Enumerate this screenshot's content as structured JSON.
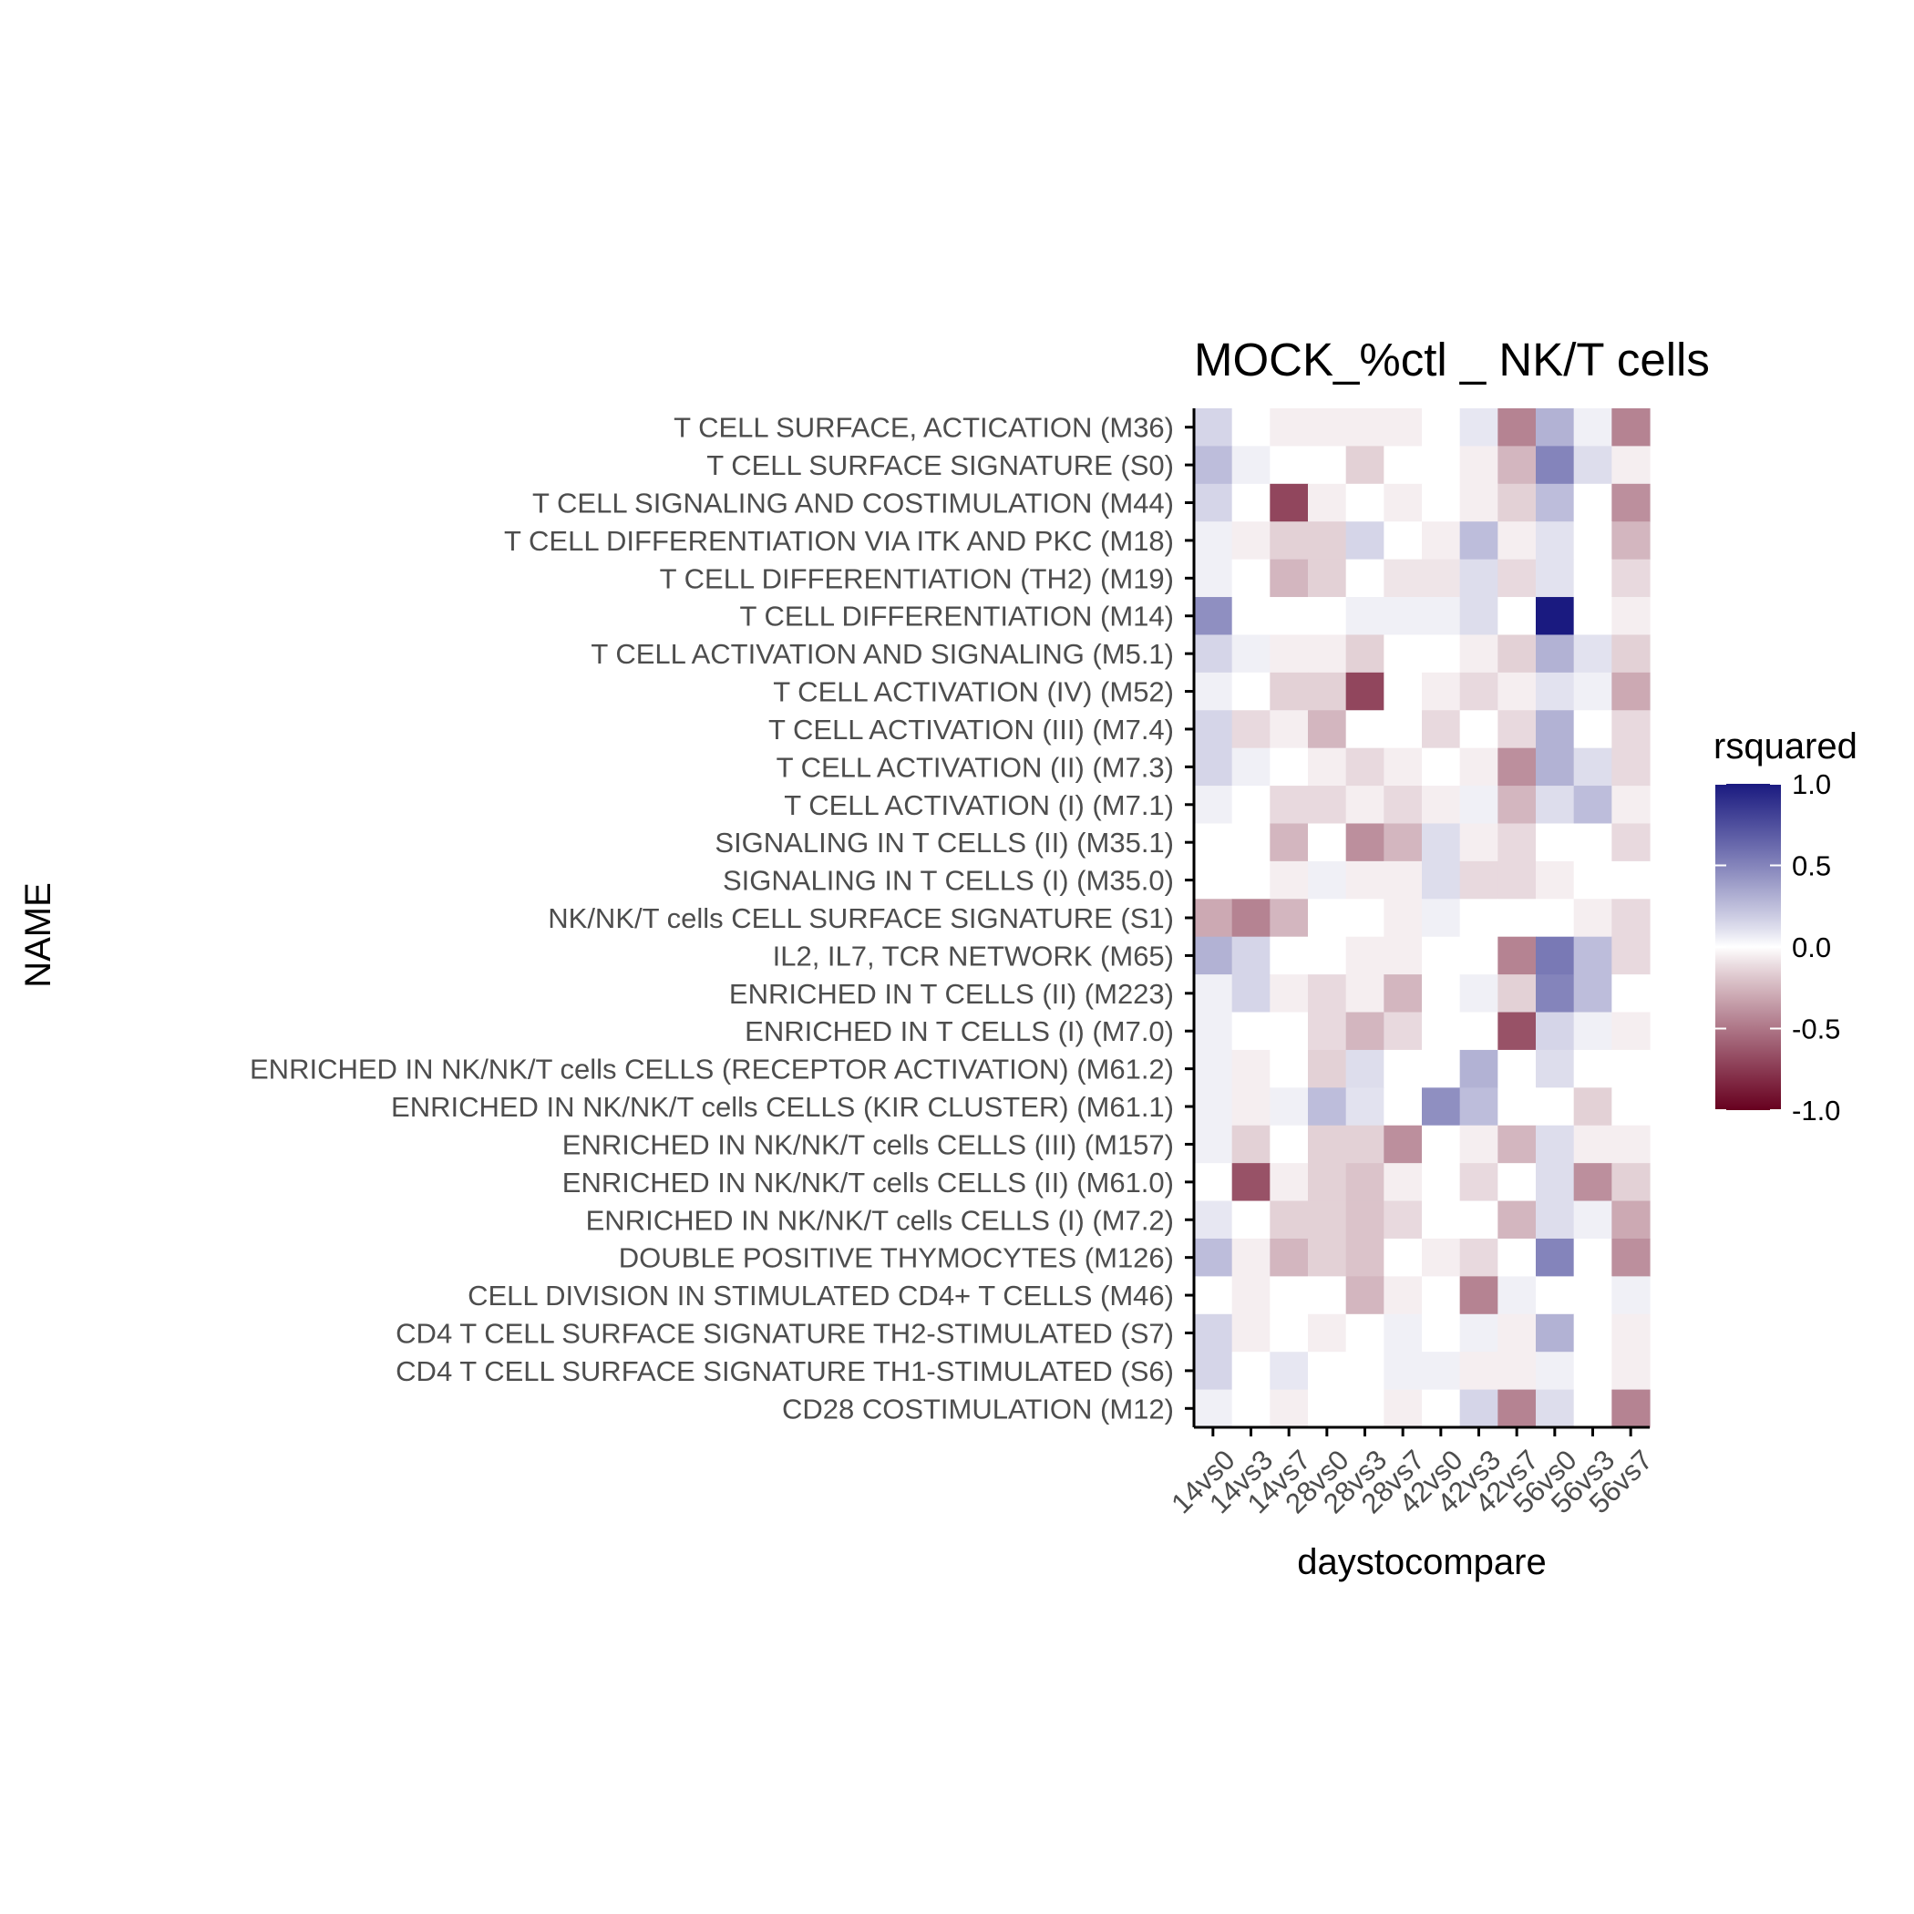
{
  "chart_data": {
    "type": "heatmap",
    "title": "MOCK_%ctl _ NK/T cells",
    "xlabel": "daystocompare",
    "ylabel": "NAME",
    "x_categories": [
      "14vs0",
      "14vs3",
      "14vs7",
      "28vs0",
      "28vs3",
      "28vs7",
      "42vs0",
      "42vs3",
      "42vs7",
      "56vs0",
      "56vs3",
      "56vs7"
    ],
    "y_categories": [
      "T CELL SURFACE, ACTICATION (M36)",
      "T CELL SURFACE SIGNATURE (S0)",
      "T CELL SIGNALING AND COSTIMULATION (M44)",
      "T CELL DIFFERENTIATION VIA ITK AND PKC (M18)",
      "T CELL DIFFERENTIATION (TH2) (M19)",
      "T CELL DIFFERENTIATION (M14)",
      "T CELL ACTIVATION AND SIGNALING (M5.1)",
      "T CELL ACTIVATION (IV) (M52)",
      "T CELL ACTIVATION (III) (M7.4)",
      "T CELL ACTIVATION (II) (M7.3)",
      "T CELL ACTIVATION (I) (M7.1)",
      "SIGNALING IN T CELLS (II) (M35.1)",
      "SIGNALING IN T CELLS (I) (M35.0)",
      "NK/NK/T cells CELL SURFACE SIGNATURE (S1)",
      "IL2, IL7, TCR NETWORK (M65)",
      "ENRICHED IN T CELLS (II) (M223)",
      "ENRICHED IN T CELLS (I) (M7.0)",
      "ENRICHED IN NK/NK/T cells CELLS (RECEPTOR ACTIVATION) (M61.2)",
      "ENRICHED IN NK/NK/T cells CELLS (KIR CLUSTER) (M61.1)",
      "ENRICHED IN NK/NK/T cells CELLS (III) (M157)",
      "ENRICHED IN NK/NK/T cells CELLS (II) (M61.0)",
      "ENRICHED IN NK/NK/T cells CELLS (I) (M7.2)",
      "DOUBLE POSITIVE THYMOCYTES (M126)",
      "CELL DIVISION IN STIMULATED CD4+ T CELLS (M46)",
      "CD4 T CELL SURFACE SIGNATURE TH2-STIMULATED (S7)",
      "CD4 T CELL SURFACE SIGNATURE TH1-STIMULATED (S6)",
      "CD28 COSTIMULATION (M12)"
    ],
    "values": [
      [
        0.15,
        0,
        -0.05,
        -0.05,
        -0.05,
        -0.05,
        0,
        0.08,
        -0.45,
        0.3,
        0.05,
        -0.45
      ],
      [
        0.25,
        0.05,
        0,
        0,
        -0.15,
        0,
        0,
        -0.05,
        -0.25,
        0.5,
        0.12,
        -0.05
      ],
      [
        0.15,
        0,
        -0.7,
        -0.05,
        0,
        -0.05,
        0,
        -0.05,
        -0.15,
        0.25,
        0,
        -0.4
      ],
      [
        0.05,
        -0.05,
        -0.15,
        -0.15,
        0.15,
        0,
        -0.05,
        0.25,
        -0.05,
        0.1,
        0,
        -0.25
      ],
      [
        0.05,
        0,
        -0.25,
        -0.15,
        0,
        -0.08,
        -0.08,
        0.12,
        -0.12,
        0.1,
        0,
        -0.12
      ],
      [
        0.45,
        0,
        0,
        0,
        0.05,
        0.05,
        0.05,
        0.12,
        0,
        1.0,
        0,
        -0.05
      ],
      [
        0.15,
        0.05,
        -0.05,
        -0.05,
        -0.15,
        0,
        0,
        -0.05,
        -0.15,
        0.3,
        0.1,
        -0.15
      ],
      [
        0.05,
        0,
        -0.15,
        -0.15,
        -0.7,
        0,
        -0.05,
        -0.12,
        -0.05,
        0.1,
        0.05,
        -0.3
      ],
      [
        0.15,
        -0.12,
        -0.05,
        -0.25,
        0,
        0,
        -0.12,
        0,
        -0.12,
        0.3,
        0,
        -0.12
      ],
      [
        0.15,
        0.05,
        0,
        -0.05,
        -0.12,
        -0.05,
        0,
        -0.05,
        -0.4,
        0.3,
        0.12,
        -0.12
      ],
      [
        0.05,
        0,
        -0.12,
        -0.12,
        -0.05,
        -0.12,
        -0.05,
        0.05,
        -0.25,
        0.12,
        0.25,
        -0.05
      ],
      [
        0,
        0,
        -0.25,
        0,
        -0.4,
        -0.25,
        0.12,
        -0.05,
        -0.12,
        0,
        0,
        -0.12
      ],
      [
        0,
        0,
        -0.05,
        0.05,
        -0.05,
        -0.05,
        0.12,
        -0.12,
        -0.12,
        -0.05,
        0,
        0
      ],
      [
        -0.3,
        -0.45,
        -0.25,
        0,
        0,
        -0.05,
        0.05,
        0,
        0,
        0,
        -0.05,
        -0.12
      ],
      [
        0.3,
        0.15,
        0,
        0,
        -0.05,
        -0.05,
        0,
        0,
        -0.45,
        0.55,
        0.25,
        -0.12
      ],
      [
        0.05,
        0.15,
        -0.05,
        -0.12,
        -0.05,
        -0.25,
        0,
        0.05,
        -0.15,
        0.5,
        0.25,
        0
      ],
      [
        0.05,
        0,
        0,
        -0.12,
        -0.25,
        -0.12,
        0,
        0,
        -0.65,
        0.15,
        0.05,
        -0.05
      ],
      [
        0.05,
        -0.05,
        0,
        -0.15,
        0.12,
        0,
        0,
        0.3,
        0,
        0.12,
        0,
        0
      ],
      [
        0.05,
        -0.05,
        0.05,
        0.25,
        0.1,
        0,
        0.45,
        0.25,
        0,
        0,
        -0.15,
        0
      ],
      [
        0.05,
        -0.15,
        0,
        -0.15,
        -0.15,
        -0.4,
        0,
        -0.05,
        -0.25,
        0.12,
        -0.05,
        -0.05
      ],
      [
        0,
        -0.65,
        -0.05,
        -0.15,
        -0.2,
        -0.05,
        0,
        -0.12,
        0,
        0.12,
        -0.4,
        -0.15
      ],
      [
        0.08,
        0,
        -0.15,
        -0.15,
        -0.2,
        -0.12,
        0,
        0,
        -0.25,
        0.12,
        0.05,
        -0.3
      ],
      [
        0.25,
        -0.05,
        -0.25,
        -0.15,
        -0.2,
        0,
        -0.05,
        -0.12,
        0,
        0.5,
        0,
        -0.4
      ],
      [
        0,
        -0.05,
        0,
        0,
        -0.25,
        -0.05,
        0,
        -0.45,
        0.05,
        0,
        0,
        0.05
      ],
      [
        0.15,
        -0.05,
        0,
        -0.05,
        0,
        0.05,
        0,
        0.05,
        -0.05,
        0.3,
        0,
        -0.05
      ],
      [
        0.15,
        0,
        0.08,
        0,
        0,
        0.05,
        0.05,
        -0.05,
        -0.05,
        0.05,
        0,
        -0.05
      ],
      [
        0.05,
        0,
        -0.05,
        0,
        0,
        -0.05,
        0,
        0.15,
        -0.45,
        0.12,
        0,
        -0.45
      ]
    ],
    "legend": {
      "title": "rsquared",
      "ticks": [
        "1.0",
        "0.5",
        "0.0",
        "-0.5",
        "-1.0"
      ],
      "tick_values": [
        1.0,
        0.5,
        0.0,
        -0.5,
        -1.0
      ],
      "range": [
        -1.0,
        1.0
      ],
      "placement": "right"
    },
    "colors": {
      "low": "#67001f",
      "mid": "#ffffff",
      "high": "#1a1a80"
    },
    "grid": false
  }
}
